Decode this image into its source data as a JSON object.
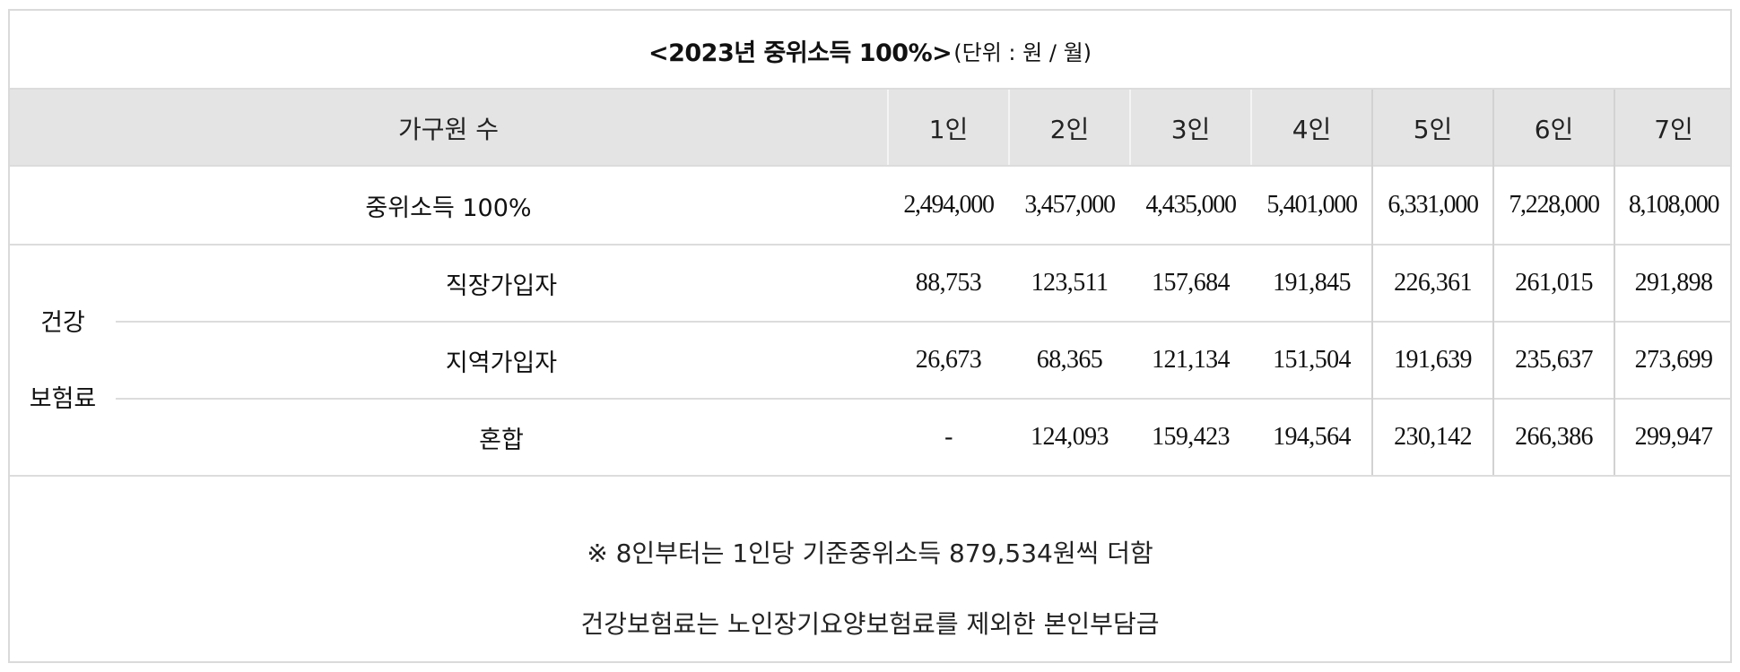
{
  "title": {
    "main": "<2023년 중위소득 100%>",
    "unit": "(단위 : 원 / 월)"
  },
  "header": {
    "label": "가구원 수",
    "columns": [
      "1인",
      "2인",
      "3인",
      "4인",
      "5인",
      "6인",
      "7인"
    ]
  },
  "income_row": {
    "label": "중위소득 100%",
    "values": [
      "2,494,000",
      "3,457,000",
      "4,435,000",
      "5,401,000",
      "6,331,000",
      "7,228,000",
      "8,108,000"
    ]
  },
  "insurance": {
    "group_label_line1": "건강",
    "group_label_line2": "보험료",
    "rows": [
      {
        "label": "직장가입자",
        "values": [
          "88,753",
          "123,511",
          "157,684",
          "191,845",
          "226,361",
          "261,015",
          "291,898"
        ]
      },
      {
        "label": "지역가입자",
        "values": [
          "26,673",
          "68,365",
          "121,134",
          "151,504",
          "191,639",
          "235,637",
          "273,699"
        ]
      },
      {
        "label": "혼합",
        "values": [
          "-",
          "124,093",
          "159,423",
          "194,564",
          "230,142",
          "266,386",
          "299,947"
        ]
      }
    ]
  },
  "notes": [
    "※ 8인부터는 1인당 기준중위소득 879,534원씩 더함",
    "건강보험료는 노인장기요양보험료를 제외한 본인부담금"
  ]
}
